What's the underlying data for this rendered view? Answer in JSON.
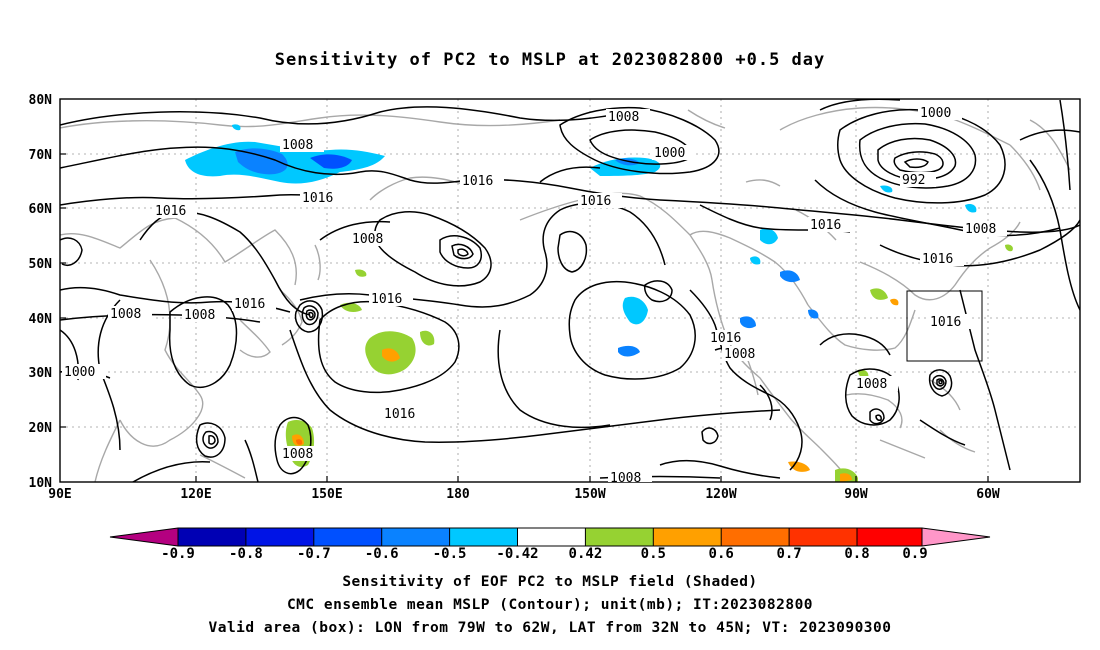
{
  "title": "Sensitivity of PC2 to MSLP at 2023082800 +0.5 day",
  "map": {
    "lon_labels": [
      "90E",
      "120E",
      "150E",
      "180",
      "150W",
      "120W",
      "90W",
      "60W"
    ],
    "lat_labels": [
      "80N",
      "70N",
      "60N",
      "50N",
      "40N",
      "30N",
      "20N",
      "10N"
    ],
    "contour_labels": [
      "1008",
      "1016",
      "1000",
      "992"
    ],
    "valid_box": {
      "lon_min": -79,
      "lon_max": -62,
      "lat_min": 32,
      "lat_max": 45
    }
  },
  "colorbar": {
    "labels": [
      "-0.9",
      "-0.8",
      "-0.7",
      "-0.6",
      "-0.5",
      "-0.42",
      "0.42",
      "0.5",
      "0.6",
      "0.7",
      "0.8",
      "0.9"
    ],
    "colors": [
      "#b40080",
      "#0000b4",
      "#0014e6",
      "#0050ff",
      "#0a82ff",
      "#00c8ff",
      "#ffffff",
      "#96d232",
      "#ffa000",
      "#ff6e00",
      "#ff3200",
      "#ff0000",
      "#ff96c8"
    ]
  },
  "captions": {
    "line1": "Sensitivity of EOF PC2 to MSLP field (Shaded)",
    "line2": "CMC ensemble mean MSLP (Contour); unit(mb); IT:2023082800",
    "line3": "Valid area (box): LON from 79W to 62W, LAT from 32N to 45N; VT: 2023090300"
  }
}
